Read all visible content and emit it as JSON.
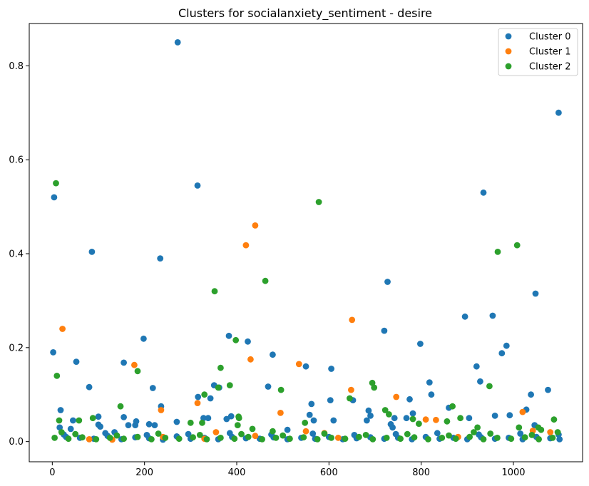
{
  "chart_data": {
    "type": "scatter",
    "title": "Clusters for socialanxiety_sentiment - desire",
    "xlabel": "",
    "ylabel": "",
    "xlim": [
      -50,
      1150
    ],
    "ylim": [
      -0.043,
      0.89
    ],
    "xticks": [
      0,
      200,
      400,
      600,
      800,
      1000
    ],
    "yticks": [
      0.0,
      0.2,
      0.4,
      0.6,
      0.8
    ],
    "grid": false,
    "legend_position": "top-right",
    "series": [
      {
        "name": "Cluster 0",
        "color": "#1f77b4",
        "points": [
          [
            2,
            0.19
          ],
          [
            4,
            0.52
          ],
          [
            18,
            0.067
          ],
          [
            16,
            0.03
          ],
          [
            45,
            0.045
          ],
          [
            40,
            0.027
          ],
          [
            52,
            0.17
          ],
          [
            80,
            0.116
          ],
          [
            86,
            0.404
          ],
          [
            100,
            0.053
          ],
          [
            100,
            0.036
          ],
          [
            104,
            0.032
          ],
          [
            135,
            0.02
          ],
          [
            155,
            0.168
          ],
          [
            155,
            0.052
          ],
          [
            165,
            0.035
          ],
          [
            180,
            0.035
          ],
          [
            182,
            0.043
          ],
          [
            198,
            0.219
          ],
          [
            210,
            0.037
          ],
          [
            218,
            0.114
          ],
          [
            222,
            0.035
          ],
          [
            234,
            0.39
          ],
          [
            236,
            0.075
          ],
          [
            272,
            0.85
          ],
          [
            270,
            0.042
          ],
          [
            315,
            0.545
          ],
          [
            316,
            0.095
          ],
          [
            328,
            0.05
          ],
          [
            338,
            0.05
          ],
          [
            343,
            0.092
          ],
          [
            351,
            0.12
          ],
          [
            362,
            0.115
          ],
          [
            378,
            0.048
          ],
          [
            383,
            0.225
          ],
          [
            388,
            0.054
          ],
          [
            424,
            0.213
          ],
          [
            468,
            0.117
          ],
          [
            478,
            0.185
          ],
          [
            510,
            0.025
          ],
          [
            550,
            0.16
          ],
          [
            558,
            0.057
          ],
          [
            562,
            0.08
          ],
          [
            567,
            0.045
          ],
          [
            603,
            0.088
          ],
          [
            605,
            0.155
          ],
          [
            610,
            0.045
          ],
          [
            652,
            0.088
          ],
          [
            682,
            0.045
          ],
          [
            686,
            0.066
          ],
          [
            690,
            0.055
          ],
          [
            720,
            0.236
          ],
          [
            727,
            0.34
          ],
          [
            734,
            0.037
          ],
          [
            738,
            0.03
          ],
          [
            742,
            0.05
          ],
          [
            768,
            0.05
          ],
          [
            775,
            0.09
          ],
          [
            782,
            0.06
          ],
          [
            798,
            0.208
          ],
          [
            818,
            0.126
          ],
          [
            822,
            0.1
          ],
          [
            860,
            0.072
          ],
          [
            895,
            0.266
          ],
          [
            904,
            0.05
          ],
          [
            920,
            0.16
          ],
          [
            928,
            0.128
          ],
          [
            935,
            0.53
          ],
          [
            955,
            0.268
          ],
          [
            960,
            0.055
          ],
          [
            975,
            0.188
          ],
          [
            985,
            0.204
          ],
          [
            992,
            0.056
          ],
          [
            1028,
            0.068
          ],
          [
            1038,
            0.1
          ],
          [
            1046,
            0.035
          ],
          [
            1048,
            0.315
          ],
          [
            1075,
            0.11
          ],
          [
            1098,
            0.7
          ],
          [
            1100,
            0.005
          ],
          [
            1098,
            0.015
          ],
          [
            30,
            0.01
          ],
          [
            60,
            0.008
          ],
          [
            90,
            0.006
          ],
          [
            120,
            0.012
          ],
          [
            150,
            0.005
          ],
          [
            180,
            0.009
          ],
          [
            210,
            0.007
          ],
          [
            240,
            0.004
          ],
          [
            270,
            0.011
          ],
          [
            300,
            0.006
          ],
          [
            330,
            0.008
          ],
          [
            360,
            0.005
          ],
          [
            390,
            0.01
          ],
          [
            420,
            0.007
          ],
          [
            450,
            0.006
          ],
          [
            480,
            0.009
          ],
          [
            510,
            0.005
          ],
          [
            540,
            0.008
          ],
          [
            570,
            0.006
          ],
          [
            600,
            0.01
          ],
          [
            630,
            0.005
          ],
          [
            660,
            0.007
          ],
          [
            690,
            0.009
          ],
          [
            720,
            0.006
          ],
          [
            750,
            0.008
          ],
          [
            780,
            0.005
          ],
          [
            810,
            0.01
          ],
          [
            840,
            0.006
          ],
          [
            870,
            0.008
          ],
          [
            900,
            0.005
          ],
          [
            930,
            0.009
          ],
          [
            960,
            0.006
          ],
          [
            990,
            0.008
          ],
          [
            1020,
            0.005
          ],
          [
            1050,
            0.01
          ],
          [
            1080,
            0.007
          ],
          [
            25,
            0.015
          ],
          [
            115,
            0.018
          ],
          [
            205,
            0.014
          ],
          [
            295,
            0.016
          ],
          [
            385,
            0.018
          ],
          [
            475,
            0.015
          ],
          [
            565,
            0.017
          ],
          [
            655,
            0.014
          ],
          [
            745,
            0.016
          ],
          [
            835,
            0.018
          ],
          [
            925,
            0.015
          ],
          [
            1015,
            0.017
          ]
        ]
      },
      {
        "name": "Cluster 1",
        "color": "#ff7f0e",
        "points": [
          [
            22,
            0.24
          ],
          [
            178,
            0.163
          ],
          [
            236,
            0.067
          ],
          [
            315,
            0.082
          ],
          [
            420,
            0.418
          ],
          [
            430,
            0.175
          ],
          [
            440,
            0.46
          ],
          [
            495,
            0.061
          ],
          [
            535,
            0.165
          ],
          [
            648,
            0.11
          ],
          [
            650,
            0.259
          ],
          [
            746,
            0.095
          ],
          [
            810,
            0.047
          ],
          [
            832,
            0.046
          ],
          [
            1020,
            0.063
          ],
          [
            1042,
            0.023
          ],
          [
            1080,
            0.02
          ],
          [
            550,
            0.022
          ],
          [
            590,
            0.018
          ],
          [
            355,
            0.02
          ],
          [
            440,
            0.012
          ],
          [
            240,
            0.01
          ],
          [
            80,
            0.005
          ],
          [
            130,
            0.004
          ],
          [
            330,
            0.006
          ],
          [
            620,
            0.008
          ],
          [
            880,
            0.01
          ]
        ]
      },
      {
        "name": "Cluster 2",
        "color": "#2ca02c",
        "points": [
          [
            8,
            0.55
          ],
          [
            10,
            0.14
          ],
          [
            15,
            0.045
          ],
          [
            20,
            0.02
          ],
          [
            58,
            0.045
          ],
          [
            88,
            0.05
          ],
          [
            148,
            0.075
          ],
          [
            185,
            0.15
          ],
          [
            300,
            0.04
          ],
          [
            325,
            0.04
          ],
          [
            330,
            0.1
          ],
          [
            352,
            0.32
          ],
          [
            360,
            0.115
          ],
          [
            365,
            0.157
          ],
          [
            385,
            0.12
          ],
          [
            398,
            0.216
          ],
          [
            402,
            0.035
          ],
          [
            404,
            0.053
          ],
          [
            405,
            0.05
          ],
          [
            434,
            0.027
          ],
          [
            462,
            0.342
          ],
          [
            478,
            0.022
          ],
          [
            496,
            0.11
          ],
          [
            548,
            0.04
          ],
          [
            578,
            0.51
          ],
          [
            645,
            0.092
          ],
          [
            694,
            0.125
          ],
          [
            698,
            0.115
          ],
          [
            722,
            0.067
          ],
          [
            730,
            0.058
          ],
          [
            782,
            0.048
          ],
          [
            795,
            0.038
          ],
          [
            856,
            0.043
          ],
          [
            868,
            0.075
          ],
          [
            885,
            0.05
          ],
          [
            914,
            0.02
          ],
          [
            922,
            0.03
          ],
          [
            948,
            0.118
          ],
          [
            966,
            0.404
          ],
          [
            1008,
            0.418
          ],
          [
            1012,
            0.03
          ],
          [
            1054,
            0.03
          ],
          [
            1060,
            0.025
          ],
          [
            1088,
            0.047
          ],
          [
            1096,
            0.02
          ],
          [
            5,
            0.008
          ],
          [
            35,
            0.006
          ],
          [
            65,
            0.009
          ],
          [
            95,
            0.005
          ],
          [
            125,
            0.008
          ],
          [
            155,
            0.006
          ],
          [
            185,
            0.01
          ],
          [
            215,
            0.005
          ],
          [
            245,
            0.008
          ],
          [
            275,
            0.006
          ],
          [
            305,
            0.009
          ],
          [
            335,
            0.005
          ],
          [
            365,
            0.008
          ],
          [
            395,
            0.006
          ],
          [
            425,
            0.01
          ],
          [
            455,
            0.005
          ],
          [
            485,
            0.008
          ],
          [
            515,
            0.006
          ],
          [
            545,
            0.009
          ],
          [
            575,
            0.005
          ],
          [
            605,
            0.008
          ],
          [
            635,
            0.006
          ],
          [
            665,
            0.01
          ],
          [
            695,
            0.005
          ],
          [
            725,
            0.008
          ],
          [
            755,
            0.006
          ],
          [
            785,
            0.009
          ],
          [
            815,
            0.005
          ],
          [
            845,
            0.008
          ],
          [
            875,
            0.006
          ],
          [
            905,
            0.01
          ],
          [
            935,
            0.005
          ],
          [
            965,
            0.008
          ],
          [
            995,
            0.006
          ],
          [
            1025,
            0.009
          ],
          [
            1055,
            0.005
          ],
          [
            1085,
            0.008
          ],
          [
            50,
            0.016
          ],
          [
            140,
            0.013
          ],
          [
            230,
            0.017
          ],
          [
            320,
            0.014
          ],
          [
            410,
            0.016
          ],
          [
            500,
            0.013
          ],
          [
            590,
            0.017
          ],
          [
            680,
            0.014
          ],
          [
            770,
            0.016
          ],
          [
            860,
            0.013
          ],
          [
            950,
            0.017
          ],
          [
            1040,
            0.014
          ]
        ]
      }
    ]
  }
}
